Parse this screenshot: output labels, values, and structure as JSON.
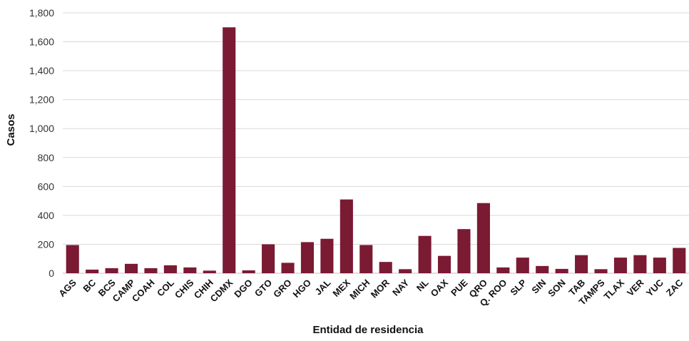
{
  "chart_data": {
    "type": "bar",
    "title": "",
    "xlabel": "Entidad de residencia",
    "ylabel": "Casos",
    "ylim": [
      0,
      1800
    ],
    "yticks": [
      0,
      200,
      400,
      600,
      800,
      1000,
      1200,
      1400,
      1600,
      1800
    ],
    "ytick_labels": [
      "0",
      "200",
      "400",
      "600",
      "800",
      "1,000",
      "1,200",
      "1,400",
      "1,600",
      "1,800"
    ],
    "grid": true,
    "legend": "none",
    "bar_color": "#7b1a33",
    "categories": [
      "AGS",
      "BC",
      "BCS",
      "CAMP",
      "COAH",
      "COL",
      "CHIS",
      "CHIH",
      "CDMX",
      "DGO",
      "GTO",
      "GRO",
      "HGO",
      "JAL",
      "MEX",
      "MICH",
      "MOR",
      "NAY",
      "NL",
      "OAX",
      "PUE",
      "QRO",
      "Q. ROO",
      "SLP",
      "SIN",
      "SON",
      "TAB",
      "TAMPS",
      "TLAX",
      "VER",
      "YUC",
      "ZAC"
    ],
    "values": [
      195,
      25,
      35,
      65,
      35,
      55,
      40,
      18,
      1700,
      20,
      200,
      72,
      215,
      238,
      510,
      195,
      78,
      28,
      258,
      120,
      305,
      485,
      40,
      108,
      50,
      30,
      125,
      28,
      108,
      125,
      108,
      175
    ]
  }
}
